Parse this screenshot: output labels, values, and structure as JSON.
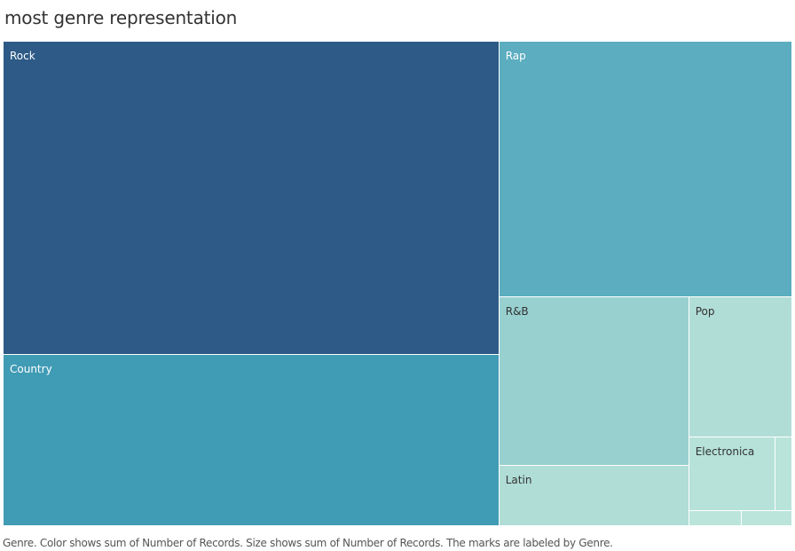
{
  "title": "most genre representation",
  "caption": "Genre.  Color shows sum of Number of Records.  Size shows sum of Number of Records.  The marks are labeled by Genre.",
  "chart_data": {
    "type": "treemap",
    "title": "most genre representation",
    "size_measure": "Number of Records",
    "color_measure": "Number of Records",
    "label_field": "Genre",
    "items": [
      {
        "label": "Rock",
        "value": 0.39,
        "color": "#2d5a86"
      },
      {
        "label": "Country",
        "value": 0.214,
        "color": "#409bb5"
      },
      {
        "label": "Rap",
        "value": 0.188,
        "color": "#5badbf"
      },
      {
        "label": "R&B",
        "value": 0.0805,
        "color": "#98d0d0"
      },
      {
        "label": "Pop",
        "value": 0.0365,
        "color": "#b1ddd7"
      },
      {
        "label": "Latin",
        "value": 0.029,
        "color": "#b1ddd7"
      },
      {
        "label": "Electronica",
        "value": 0.016,
        "color": "#b6e2d9"
      },
      {
        "label": "",
        "value": 0.0031,
        "color": "#b9e4da"
      },
      {
        "label": "",
        "value": 0.002,
        "color": "#bbe5db"
      },
      {
        "label": "",
        "value": 0.0019,
        "color": "#bbe5db"
      }
    ]
  }
}
